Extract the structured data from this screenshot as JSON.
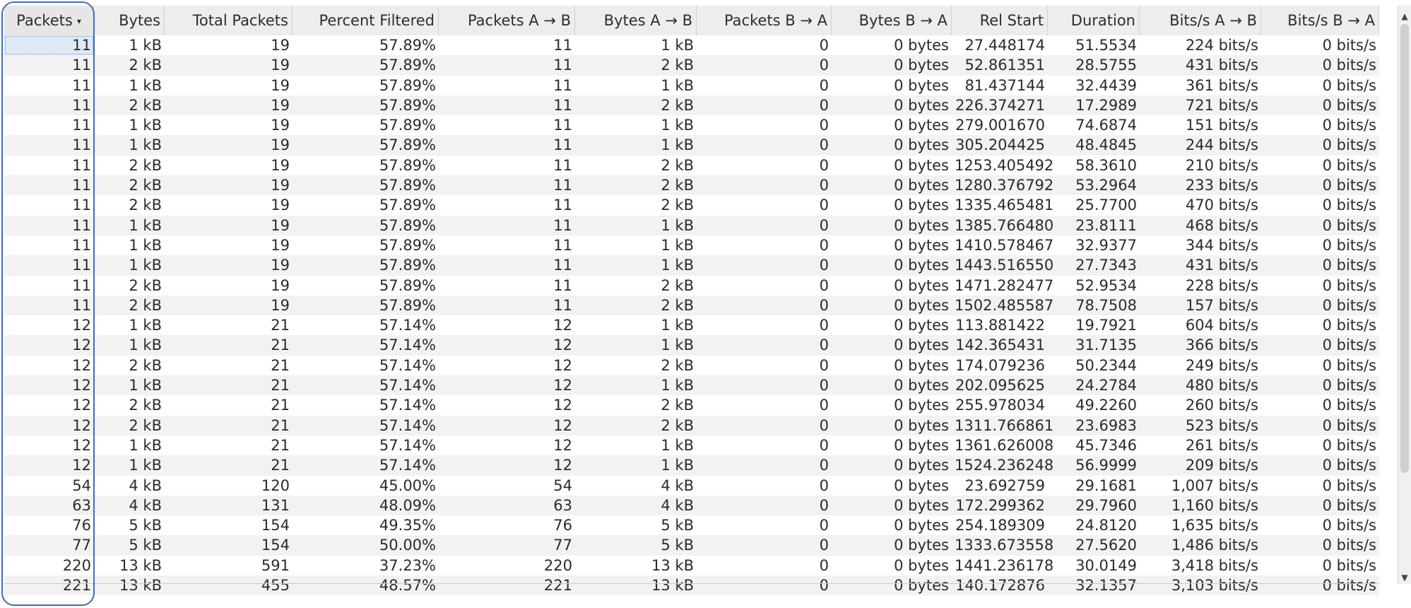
{
  "headers": [
    "Packets",
    "Bytes",
    "Total Packets",
    "Percent Filtered",
    "Packets A → B",
    "Bytes A → B",
    "Packets B → A",
    "Bytes B → A",
    "Rel Start",
    "Duration",
    "Bits/s A → B",
    "Bits/s B → A"
  ],
  "sort": {
    "column": 0,
    "arrow": "▾"
  },
  "rows": [
    [
      "11",
      "1 kB",
      "19",
      "57.89%",
      "11",
      "1 kB",
      "0",
      "0 bytes",
      "27.448174",
      "51.5534",
      "224 bits/s",
      "0 bits/s"
    ],
    [
      "11",
      "2 kB",
      "19",
      "57.89%",
      "11",
      "2 kB",
      "0",
      "0 bytes",
      "52.861351",
      "28.5755",
      "431 bits/s",
      "0 bits/s"
    ],
    [
      "11",
      "1 kB",
      "19",
      "57.89%",
      "11",
      "1 kB",
      "0",
      "0 bytes",
      "81.437144",
      "32.4439",
      "361 bits/s",
      "0 bits/s"
    ],
    [
      "11",
      "2 kB",
      "19",
      "57.89%",
      "11",
      "2 kB",
      "0",
      "0 bytes",
      "226.374271",
      "17.2989",
      "721 bits/s",
      "0 bits/s"
    ],
    [
      "11",
      "1 kB",
      "19",
      "57.89%",
      "11",
      "1 kB",
      "0",
      "0 bytes",
      "279.001670",
      "74.6874",
      "151 bits/s",
      "0 bits/s"
    ],
    [
      "11",
      "1 kB",
      "19",
      "57.89%",
      "11",
      "1 kB",
      "0",
      "0 bytes",
      "305.204425",
      "48.4845",
      "244 bits/s",
      "0 bits/s"
    ],
    [
      "11",
      "2 kB",
      "19",
      "57.89%",
      "11",
      "2 kB",
      "0",
      "0 bytes",
      "1253.405492",
      "58.3610",
      "210 bits/s",
      "0 bits/s"
    ],
    [
      "11",
      "2 kB",
      "19",
      "57.89%",
      "11",
      "2 kB",
      "0",
      "0 bytes",
      "1280.376792",
      "53.2964",
      "233 bits/s",
      "0 bits/s"
    ],
    [
      "11",
      "2 kB",
      "19",
      "57.89%",
      "11",
      "2 kB",
      "0",
      "0 bytes",
      "1335.465481",
      "25.7700",
      "470 bits/s",
      "0 bits/s"
    ],
    [
      "11",
      "1 kB",
      "19",
      "57.89%",
      "11",
      "1 kB",
      "0",
      "0 bytes",
      "1385.766480",
      "23.8111",
      "468 bits/s",
      "0 bits/s"
    ],
    [
      "11",
      "1 kB",
      "19",
      "57.89%",
      "11",
      "1 kB",
      "0",
      "0 bytes",
      "1410.578467",
      "32.9377",
      "344 bits/s",
      "0 bits/s"
    ],
    [
      "11",
      "1 kB",
      "19",
      "57.89%",
      "11",
      "1 kB",
      "0",
      "0 bytes",
      "1443.516550",
      "27.7343",
      "431 bits/s",
      "0 bits/s"
    ],
    [
      "11",
      "2 kB",
      "19",
      "57.89%",
      "11",
      "2 kB",
      "0",
      "0 bytes",
      "1471.282477",
      "52.9534",
      "228 bits/s",
      "0 bits/s"
    ],
    [
      "11",
      "2 kB",
      "19",
      "57.89%",
      "11",
      "2 kB",
      "0",
      "0 bytes",
      "1502.485587",
      "78.7508",
      "157 bits/s",
      "0 bits/s"
    ],
    [
      "12",
      "1 kB",
      "21",
      "57.14%",
      "12",
      "1 kB",
      "0",
      "0 bytes",
      "113.881422",
      "19.7921",
      "604 bits/s",
      "0 bits/s"
    ],
    [
      "12",
      "1 kB",
      "21",
      "57.14%",
      "12",
      "1 kB",
      "0",
      "0 bytes",
      "142.365431",
      "31.7135",
      "366 bits/s",
      "0 bits/s"
    ],
    [
      "12",
      "2 kB",
      "21",
      "57.14%",
      "12",
      "2 kB",
      "0",
      "0 bytes",
      "174.079236",
      "50.2344",
      "249 bits/s",
      "0 bits/s"
    ],
    [
      "12",
      "1 kB",
      "21",
      "57.14%",
      "12",
      "1 kB",
      "0",
      "0 bytes",
      "202.095625",
      "24.2784",
      "480 bits/s",
      "0 bits/s"
    ],
    [
      "12",
      "2 kB",
      "21",
      "57.14%",
      "12",
      "2 kB",
      "0",
      "0 bytes",
      "255.978034",
      "49.2260",
      "260 bits/s",
      "0 bits/s"
    ],
    [
      "12",
      "2 kB",
      "21",
      "57.14%",
      "12",
      "2 kB",
      "0",
      "0 bytes",
      "1311.766861",
      "23.6983",
      "523 bits/s",
      "0 bits/s"
    ],
    [
      "12",
      "1 kB",
      "21",
      "57.14%",
      "12",
      "1 kB",
      "0",
      "0 bytes",
      "1361.626008",
      "45.7346",
      "261 bits/s",
      "0 bits/s"
    ],
    [
      "12",
      "1 kB",
      "21",
      "57.14%",
      "12",
      "1 kB",
      "0",
      "0 bytes",
      "1524.236248",
      "56.9999",
      "209 bits/s",
      "0 bits/s"
    ],
    [
      "54",
      "4 kB",
      "120",
      "45.00%",
      "54",
      "4 kB",
      "0",
      "0 bytes",
      "23.692759",
      "29.1681",
      "1,007 bits/s",
      "0 bits/s"
    ],
    [
      "63",
      "4 kB",
      "131",
      "48.09%",
      "63",
      "4 kB",
      "0",
      "0 bytes",
      "172.299362",
      "29.7960",
      "1,160 bits/s",
      "0 bits/s"
    ],
    [
      "76",
      "5 kB",
      "154",
      "49.35%",
      "76",
      "5 kB",
      "0",
      "0 bytes",
      "254.189309",
      "24.8120",
      "1,635 bits/s",
      "0 bits/s"
    ],
    [
      "77",
      "5 kB",
      "154",
      "50.00%",
      "77",
      "5 kB",
      "0",
      "0 bytes",
      "1333.673558",
      "27.5620",
      "1,486 bits/s",
      "0 bits/s"
    ],
    [
      "220",
      "13 kB",
      "591",
      "37.23%",
      "220",
      "13 kB",
      "0",
      "0 bytes",
      "1441.236178",
      "30.0149",
      "3,418 bits/s",
      "0 bits/s"
    ],
    [
      "221",
      "13 kB",
      "455",
      "48.57%",
      "221",
      "13 kB",
      "0",
      "0 bytes",
      "140.172876",
      "32.1357",
      "3,103 bits/s",
      "0 bits/s"
    ]
  ],
  "scrollbar": {
    "up_icon": "▲",
    "down_icon": "▼"
  },
  "colors": {
    "highlight": "#3c6fb4",
    "header_bg": "#ededed"
  }
}
